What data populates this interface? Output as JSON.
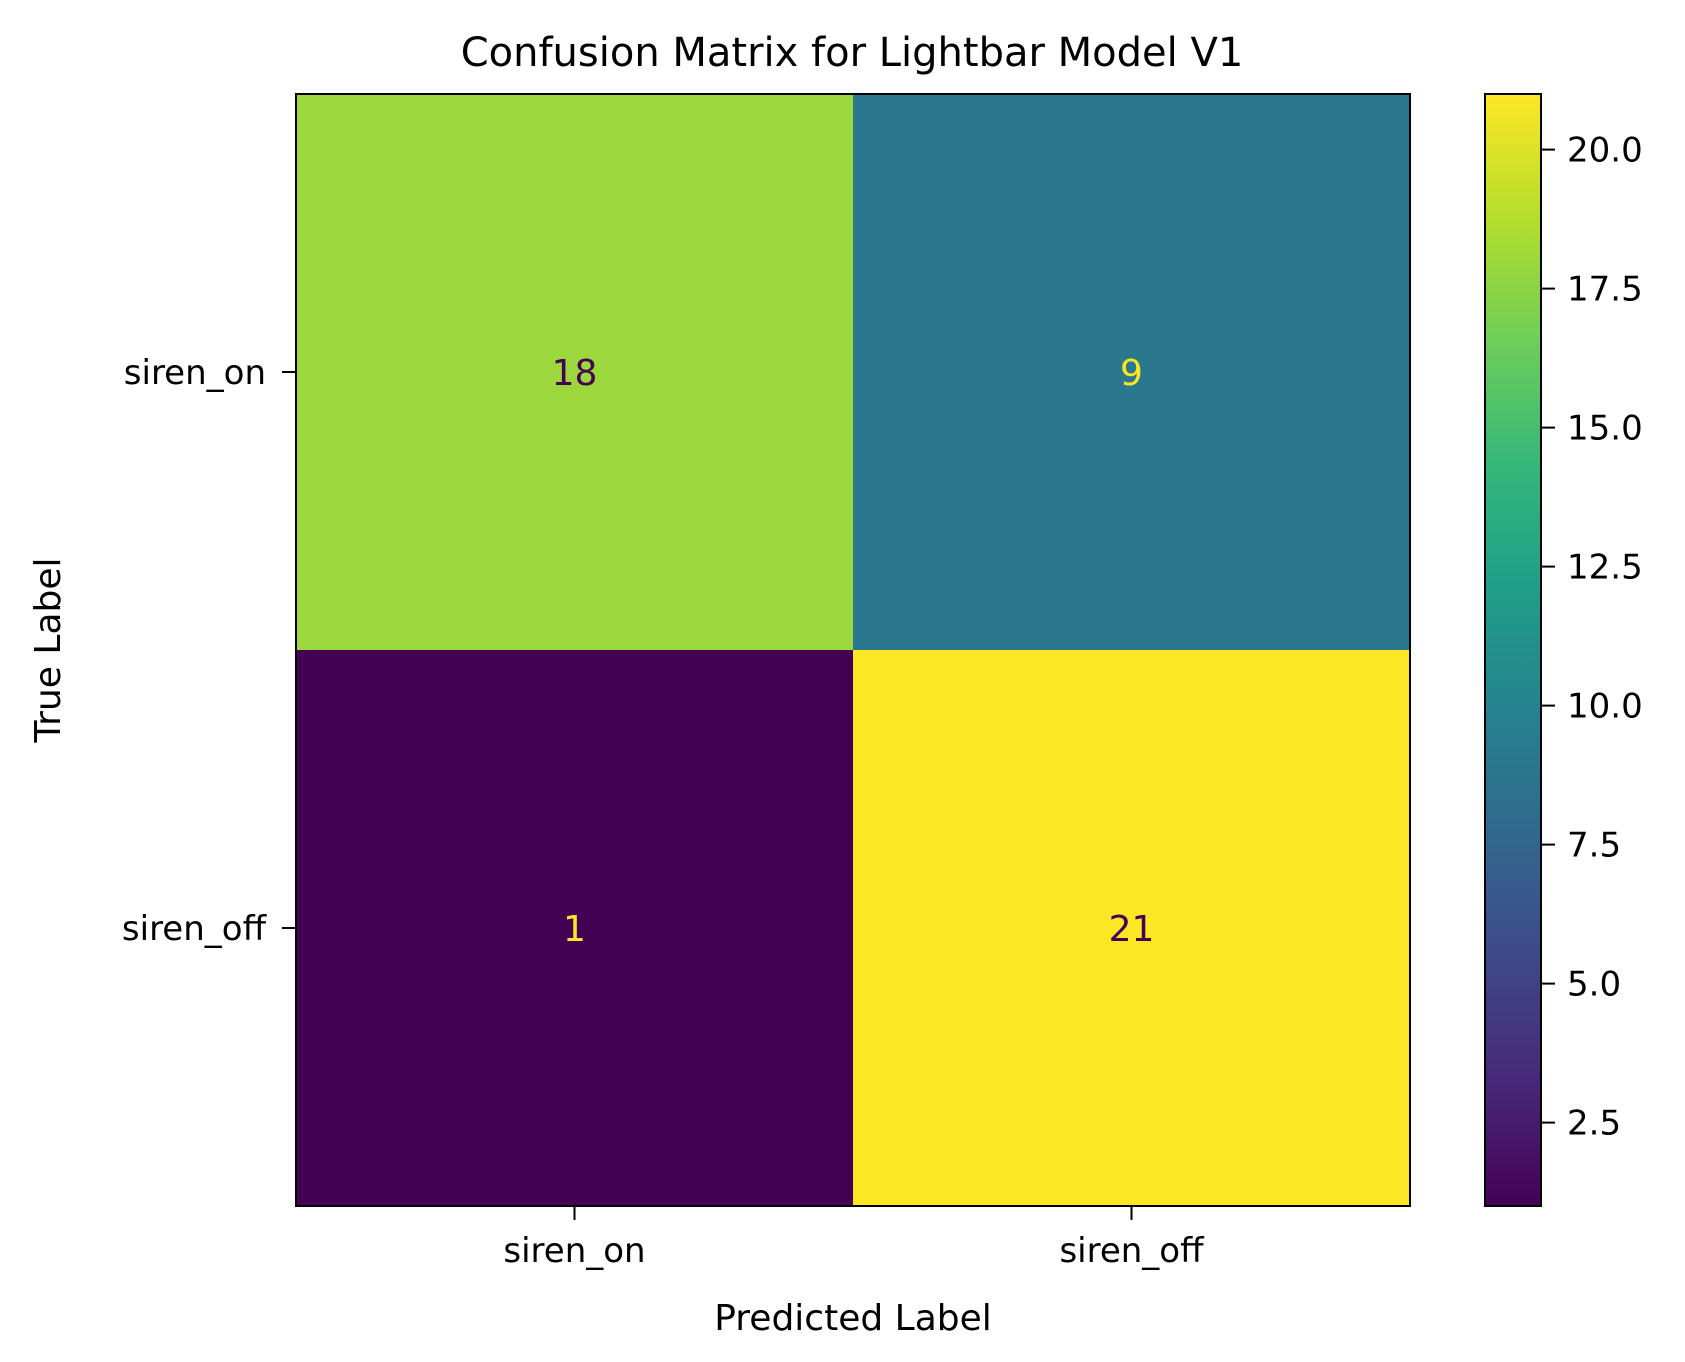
{
  "chart_data": {
    "type": "heatmap",
    "title": "Confusion Matrix for Lightbar Model V1",
    "xlabel": "Predicted Label",
    "ylabel": "True Label",
    "x_categories": [
      "siren_on",
      "siren_off"
    ],
    "y_categories": [
      "siren_on",
      "siren_off"
    ],
    "values": [
      [
        18,
        9
      ],
      [
        1,
        21
      ]
    ],
    "colormap": "viridis",
    "colorbar": {
      "vmin": 1,
      "vmax": 21,
      "ticks": [
        2.5,
        5.0,
        7.5,
        10.0,
        12.5,
        15.0,
        17.5,
        20.0
      ],
      "tick_labels": [
        "2.5",
        "5.0",
        "7.5",
        "10.0",
        "12.5",
        "15.0",
        "17.5",
        "20.0"
      ]
    },
    "text_colors": {
      "on_dark": "#fde725",
      "on_light": "#440154"
    },
    "grid": false
  }
}
